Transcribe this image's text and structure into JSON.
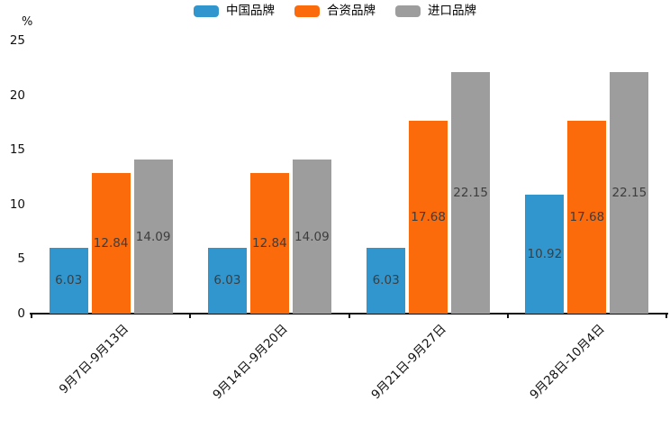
{
  "chart_data": {
    "type": "bar",
    "title": "",
    "xlabel": "",
    "ylabel": "%",
    "ylim": [
      0,
      25
    ],
    "yticks": [
      0,
      5,
      10,
      15,
      20,
      25
    ],
    "grid": false,
    "legend_position": "top",
    "value_labels": "inside-center",
    "categories": [
      "9月7日-9月13日",
      "9月14日-9月20日",
      "9月21日-9月27日",
      "9月28日-10月4日"
    ],
    "series": [
      {
        "name": "中国品牌",
        "color": "#3196CE",
        "values": [
          6.03,
          6.03,
          6.03,
          10.92
        ]
      },
      {
        "name": "合资品牌",
        "color": "#FB6A0B",
        "values": [
          12.84,
          12.84,
          17.68,
          17.68
        ]
      },
      {
        "name": "进口品牌",
        "color": "#9D9D9D",
        "values": [
          14.09,
          14.09,
          22.15,
          22.15
        ]
      }
    ],
    "colors": {
      "text": "#111111",
      "bar_label": "#3d3d3d",
      "axis": "#111111",
      "background": "#ffffff"
    }
  }
}
